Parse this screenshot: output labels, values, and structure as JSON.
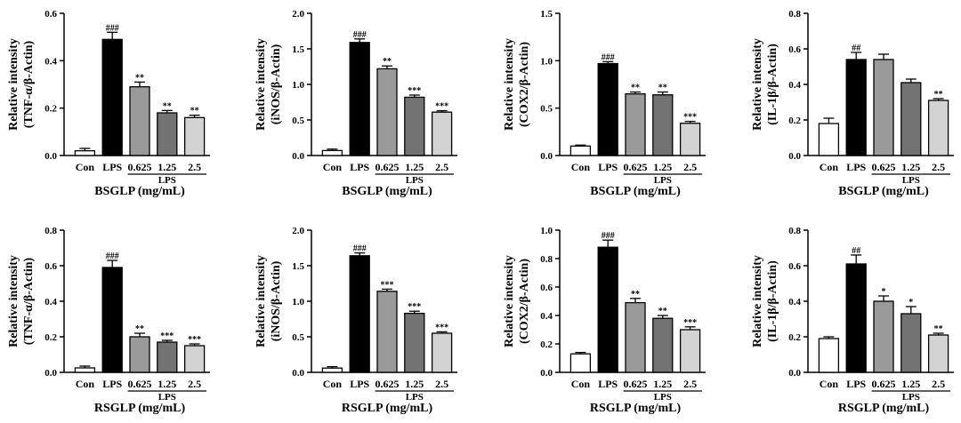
{
  "chart_data": [
    {
      "type": "bar",
      "ylabel_lines": [
        "Relative intensity",
        "(TNF-α/β-Actin)"
      ],
      "xlabel": "BSGLP (mg/mL)",
      "categories": [
        "Con",
        "LPS",
        "0.625",
        "1.25",
        "2.5"
      ],
      "values": [
        0.02,
        0.49,
        0.29,
        0.18,
        0.16
      ],
      "errors": [
        0.01,
        0.03,
        0.02,
        0.01,
        0.01
      ],
      "significance": [
        "",
        "###",
        "**",
        "**",
        "**"
      ],
      "group_label": "LPS",
      "ylim": [
        0,
        0.6
      ],
      "yticks": [
        "0.0",
        "0.2",
        "0.4",
        "0.6"
      ]
    },
    {
      "type": "bar",
      "ylabel_lines": [
        "Relative intensity",
        "(iNOS/β-Actin)"
      ],
      "xlabel": "BSGLP (mg/mL)",
      "categories": [
        "Con",
        "LPS",
        "0.625",
        "1.25",
        "2.5"
      ],
      "values": [
        0.07,
        1.59,
        1.22,
        0.82,
        0.61
      ],
      "errors": [
        0.02,
        0.05,
        0.04,
        0.03,
        0.02
      ],
      "significance": [
        "",
        "###",
        "**",
        "***",
        "***"
      ],
      "group_label": "LPS",
      "ylim": [
        0,
        2.0
      ],
      "yticks": [
        "0.0",
        "0.5",
        "1.0",
        "1.5",
        "2.0"
      ]
    },
    {
      "type": "bar",
      "ylabel_lines": [
        "Relative intensity",
        "(COX2/β-Actin)"
      ],
      "xlabel": "BSGLP (mg/mL)",
      "categories": [
        "Con",
        "LPS",
        "0.625",
        "1.25",
        "2.5"
      ],
      "values": [
        0.1,
        0.97,
        0.65,
        0.64,
        0.34
      ],
      "errors": [
        0.01,
        0.02,
        0.02,
        0.03,
        0.02
      ],
      "significance": [
        "",
        "###",
        "**",
        "**",
        "***"
      ],
      "group_label": "LPS",
      "ylim": [
        0,
        1.5
      ],
      "yticks": [
        "0.0",
        "0.5",
        "1.0",
        "1.5"
      ]
    },
    {
      "type": "bar",
      "ylabel_lines": [
        "Relative intensity",
        "(IL-1β/β-Actin)"
      ],
      "xlabel": "BSGLP (mg/mL)",
      "categories": [
        "Con",
        "LPS",
        "0.625",
        "1.25",
        "2.5"
      ],
      "values": [
        0.18,
        0.54,
        0.54,
        0.41,
        0.31
      ],
      "errors": [
        0.03,
        0.04,
        0.03,
        0.02,
        0.01
      ],
      "significance": [
        "",
        "##",
        "",
        "",
        "**"
      ],
      "group_label": "LPS",
      "ylim": [
        0,
        0.8
      ],
      "yticks": [
        "0.0",
        "0.2",
        "0.4",
        "0.6",
        "0.8"
      ]
    },
    {
      "type": "bar",
      "ylabel_lines": [
        "Relative intensity",
        "(TNF-α/β-Actin)"
      ],
      "xlabel": "RSGLP (mg/mL)",
      "categories": [
        "Con",
        "LPS",
        "0.625",
        "1.25",
        "2.5"
      ],
      "values": [
        0.025,
        0.59,
        0.2,
        0.17,
        0.15
      ],
      "errors": [
        0.01,
        0.04,
        0.02,
        0.01,
        0.01
      ],
      "significance": [
        "",
        "###",
        "**",
        "***",
        "***"
      ],
      "group_label": "LPS",
      "ylim": [
        0,
        0.8
      ],
      "yticks": [
        "0.0",
        "0.2",
        "0.4",
        "0.6",
        "0.8"
      ]
    },
    {
      "type": "bar",
      "ylabel_lines": [
        "Relative intensity",
        "(iNOS/β-Actin)"
      ],
      "xlabel": "RSGLP (mg/mL)",
      "categories": [
        "Con",
        "LPS",
        "0.625",
        "1.25",
        "2.5"
      ],
      "values": [
        0.06,
        1.64,
        1.14,
        0.83,
        0.55
      ],
      "errors": [
        0.02,
        0.04,
        0.03,
        0.03,
        0.02
      ],
      "significance": [
        "",
        "###",
        "***",
        "***",
        "***"
      ],
      "group_label": "LPS",
      "ylim": [
        0,
        2.0
      ],
      "yticks": [
        "0.0",
        "0.5",
        "1.0",
        "1.5",
        "2.0"
      ]
    },
    {
      "type": "bar",
      "ylabel_lines": [
        "Relative intensity",
        "(COX2/β-Actin)"
      ],
      "xlabel": "RSGLP (mg/mL)",
      "categories": [
        "Con",
        "LPS",
        "0.625",
        "1.25",
        "2.5"
      ],
      "values": [
        0.13,
        0.88,
        0.49,
        0.38,
        0.3
      ],
      "errors": [
        0.01,
        0.05,
        0.03,
        0.02,
        0.02
      ],
      "significance": [
        "",
        "###",
        "**",
        "**",
        "***"
      ],
      "group_label": "LPS",
      "ylim": [
        0,
        1.0
      ],
      "yticks": [
        "0.0",
        "0.2",
        "0.4",
        "0.6",
        "0.8",
        "1.0"
      ]
    },
    {
      "type": "bar",
      "ylabel_lines": [
        "Relative intensity",
        "(IL-1β/β-Actin)"
      ],
      "xlabel": "RSGLP (mg/mL)",
      "categories": [
        "Con",
        "LPS",
        "0.625",
        "1.25",
        "2.5"
      ],
      "values": [
        0.19,
        0.61,
        0.4,
        0.33,
        0.21
      ],
      "errors": [
        0.01,
        0.05,
        0.03,
        0.04,
        0.01
      ],
      "significance": [
        "",
        "##",
        "*",
        "*",
        "**"
      ],
      "group_label": "LPS",
      "ylim": [
        0,
        0.8
      ],
      "yticks": [
        "0.0",
        "0.2",
        "0.4",
        "0.6",
        "0.8"
      ]
    }
  ],
  "bar_colors": [
    "#ffffff",
    "#000000",
    "#9a9a9a",
    "#737373",
    "#d3d3d3"
  ]
}
